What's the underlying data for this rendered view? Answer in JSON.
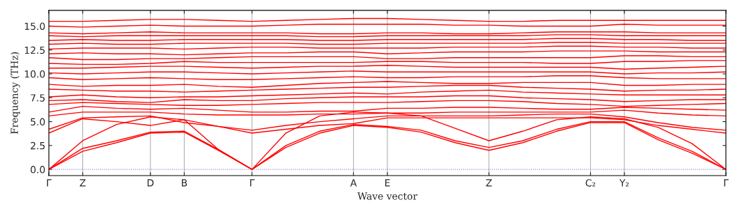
{
  "chart_data": {
    "type": "line",
    "xlabel": "Wave vector",
    "ylabel": "Frequency (THz)",
    "categories": [
      "Γ",
      "Z",
      null,
      "D",
      "B",
      null,
      "Γ",
      null,
      null,
      "A",
      "E",
      null,
      null,
      "Z",
      null,
      null,
      "C₂",
      "Y₂",
      null,
      null,
      "Γ"
    ],
    "ylim": [
      -0.65,
      16.65
    ],
    "yticks": [
      {
        "value": 0,
        "label": "0.0"
      },
      {
        "value": 2.5,
        "label": "2.5"
      },
      {
        "value": 5,
        "label": "5.0"
      },
      {
        "value": 7.5,
        "label": "7.5"
      },
      {
        "value": 10,
        "label": "10.0"
      },
      {
        "value": 12.5,
        "label": "12.5"
      },
      {
        "value": 15,
        "label": "15.0"
      }
    ],
    "grid": "x",
    "marker": "none",
    "line_style": "solid",
    "ref_lines": [
      {
        "axis": "y",
        "value": 0,
        "color": "#7f7fff",
        "line_style": "dotted"
      }
    ],
    "series": [
      {
        "color": "#ff0000",
        "values": [
          0,
          1.9,
          2.8,
          3.8,
          3.9,
          2.0,
          0,
          2.3,
          3.8,
          4.6,
          4.4,
          3.9,
          2.8,
          2.0,
          2.8,
          4.0,
          4.9,
          4.9,
          3.1,
          1.7,
          0
        ]
      },
      {
        "color": "#ff0000",
        "values": [
          0,
          2.2,
          3.0,
          3.9,
          4.0,
          2.1,
          0,
          2.5,
          4.0,
          4.7,
          4.5,
          4.1,
          3.0,
          2.3,
          3.0,
          4.2,
          5.0,
          5.0,
          3.3,
          1.9,
          0
        ]
      },
      {
        "color": "#ff0000",
        "values": [
          0,
          3.0,
          4.7,
          5.5,
          5.2,
          2.1,
          0,
          3.8,
          5.6,
          6.0,
          5.9,
          5.6,
          4.3,
          3.0,
          4.0,
          5.2,
          5.5,
          5.3,
          4.4,
          2.7,
          0
        ]
      },
      {
        "color": "#ff0000",
        "values": [
          3.8,
          5.3,
          5.0,
          4.6,
          5.2,
          4.5,
          3.8,
          4.2,
          4.6,
          4.8,
          5.4,
          5.4,
          5.4,
          5.4,
          5.4,
          5.4,
          5.4,
          5.2,
          4.6,
          4.2,
          3.8
        ]
      },
      {
        "color": "#ff0000",
        "values": [
          4.2,
          5.4,
          5.5,
          5.6,
          4.9,
          4.5,
          4.1,
          4.6,
          5.0,
          5.3,
          5.6,
          5.6,
          5.6,
          5.6,
          5.7,
          5.8,
          5.8,
          5.5,
          4.9,
          4.4,
          4.1
        ]
      },
      {
        "color": "#ff0000",
        "values": [
          5.6,
          6.0,
          6.0,
          6.0,
          5.8,
          5.7,
          5.7,
          5.7,
          5.8,
          5.8,
          5.9,
          5.9,
          6.0,
          6.0,
          6.0,
          6.0,
          6.0,
          6.2,
          5.9,
          5.7,
          5.6
        ]
      },
      {
        "color": "#ff0000",
        "values": [
          6.0,
          6.6,
          6.4,
          6.3,
          6.4,
          6.2,
          6.0,
          6.0,
          6.1,
          6.1,
          6.4,
          6.4,
          6.5,
          6.5,
          6.4,
          6.3,
          6.3,
          6.5,
          6.4,
          6.3,
          6.2
        ]
      },
      {
        "color": "#ff0000",
        "values": [
          6.8,
          7.0,
          6.9,
          6.8,
          6.7,
          6.7,
          6.8,
          6.9,
          7.0,
          7.0,
          7.0,
          7.1,
          7.2,
          7.2,
          7.1,
          6.9,
          6.8,
          6.6,
          6.7,
          6.8,
          6.9
        ]
      },
      {
        "color": "#ff0000",
        "values": [
          7.2,
          7.3,
          7.1,
          7.0,
          7.3,
          7.2,
          7.2,
          7.4,
          7.5,
          7.6,
          7.6,
          7.6,
          7.7,
          7.7,
          7.5,
          7.4,
          7.3,
          7.1,
          7.2,
          7.3,
          7.3
        ]
      },
      {
        "color": "#ff0000",
        "values": [
          7.6,
          7.8,
          7.6,
          7.5,
          7.6,
          7.6,
          7.7,
          7.8,
          7.9,
          8.0,
          7.9,
          8.1,
          8.2,
          8.3,
          8.1,
          8.0,
          7.9,
          7.8,
          7.8,
          7.8,
          7.8
        ]
      },
      {
        "color": "#ff0000",
        "values": [
          8.4,
          8.3,
          8.2,
          8.2,
          8.1,
          8.2,
          8.3,
          8.4,
          8.5,
          8.6,
          8.6,
          8.7,
          8.8,
          8.8,
          8.6,
          8.5,
          8.4,
          8.2,
          8.3,
          8.3,
          8.4
        ]
      },
      {
        "color": "#ff0000",
        "values": [
          8.9,
          8.7,
          8.8,
          8.8,
          8.9,
          8.7,
          8.6,
          8.8,
          9.0,
          9.1,
          9.2,
          9.1,
          9.0,
          9.0,
          9.1,
          9.1,
          9.1,
          8.8,
          8.8,
          8.9,
          8.9
        ]
      },
      {
        "color": "#ff0000",
        "values": [
          9.6,
          9.4,
          9.5,
          9.6,
          9.5,
          9.4,
          9.4,
          9.5,
          9.6,
          9.7,
          9.6,
          9.6,
          9.7,
          9.7,
          9.7,
          9.8,
          9.8,
          9.6,
          9.5,
          9.5,
          9.5
        ]
      },
      {
        "color": "#ff0000",
        "values": [
          10.1,
          10.0,
          10.1,
          10.2,
          10.2,
          10.1,
          10.0,
          10.1,
          10.2,
          10.3,
          10.2,
          10.2,
          10.2,
          10.2,
          10.2,
          10.2,
          10.2,
          10.0,
          10.1,
          10.1,
          10.2
        ]
      },
      {
        "color": "#ff0000",
        "values": [
          10.6,
          10.6,
          10.7,
          10.8,
          10.8,
          10.7,
          10.6,
          10.7,
          10.8,
          10.8,
          10.9,
          10.8,
          10.7,
          10.7,
          10.7,
          10.7,
          10.7,
          10.5,
          10.6,
          10.7,
          10.8
        ]
      },
      {
        "color": "#ff0000",
        "values": [
          11.1,
          11.0,
          11.0,
          11.1,
          11.3,
          11.2,
          11.2,
          11.2,
          11.2,
          11.2,
          11.3,
          11.3,
          11.2,
          11.2,
          11.2,
          11.1,
          11.1,
          11.3,
          11.3,
          11.4,
          11.4
        ]
      },
      {
        "color": "#ff0000",
        "values": [
          11.7,
          11.5,
          11.5,
          11.6,
          11.6,
          11.7,
          11.8,
          11.8,
          11.8,
          11.8,
          11.6,
          11.6,
          11.7,
          11.7,
          11.7,
          11.7,
          11.7,
          11.9,
          11.9,
          11.8,
          11.8
        ]
      },
      {
        "color": "#ff0000",
        "values": [
          12.1,
          12.2,
          12.1,
          12.1,
          12.0,
          12.1,
          12.2,
          12.2,
          12.3,
          12.3,
          12.1,
          12.2,
          12.3,
          12.3,
          12.3,
          12.4,
          12.4,
          12.4,
          12.3,
          12.3,
          12.3
        ]
      },
      {
        "color": "#ff0000",
        "values": [
          12.6,
          12.7,
          12.7,
          12.7,
          12.6,
          12.7,
          12.8,
          12.8,
          12.7,
          12.7,
          12.7,
          12.7,
          12.8,
          12.8,
          12.8,
          12.9,
          12.9,
          12.8,
          12.8,
          12.7,
          12.7
        ]
      },
      {
        "color": "#ff0000",
        "values": [
          13.1,
          13.2,
          13.1,
          13.1,
          13.2,
          13.2,
          13.2,
          13.2,
          13.1,
          13.1,
          13.2,
          13.2,
          13.2,
          13.2,
          13.2,
          13.3,
          13.3,
          13.2,
          13.2,
          13.2,
          13.2
        ]
      },
      {
        "color": "#ff0000",
        "values": [
          13.5,
          13.6,
          13.5,
          13.5,
          13.6,
          13.6,
          13.6,
          13.6,
          13.5,
          13.5,
          13.6,
          13.6,
          13.6,
          13.6,
          13.6,
          13.7,
          13.7,
          13.6,
          13.6,
          13.5,
          13.5
        ]
      },
      {
        "color": "#ff0000",
        "values": [
          14.0,
          13.9,
          14.0,
          14.0,
          14.0,
          14.0,
          14.0,
          14.0,
          13.9,
          13.9,
          14.0,
          14.0,
          14.0,
          14.0,
          14.0,
          14.1,
          14.1,
          14.0,
          14.0,
          14.0,
          14.0
        ]
      },
      {
        "color": "#ff0000",
        "values": [
          14.3,
          14.2,
          14.3,
          14.4,
          14.3,
          14.3,
          14.3,
          14.3,
          14.2,
          14.2,
          14.3,
          14.3,
          14.2,
          14.2,
          14.3,
          14.4,
          14.4,
          14.4,
          14.3,
          14.3,
          14.3
        ]
      },
      {
        "color": "#ff0000",
        "values": [
          15.0,
          14.9,
          15.0,
          15.1,
          15.0,
          15.0,
          15.0,
          15.1,
          15.2,
          15.2,
          15.2,
          15.2,
          15.1,
          15.1,
          15.0,
          15.0,
          15.0,
          15.2,
          15.1,
          15.1,
          15.1
        ]
      },
      {
        "color": "#ff0000",
        "values": [
          15.5,
          15.5,
          15.6,
          15.7,
          15.7,
          15.6,
          15.5,
          15.6,
          15.7,
          15.8,
          15.8,
          15.7,
          15.6,
          15.5,
          15.5,
          15.6,
          15.6,
          15.6,
          15.6,
          15.6,
          15.6
        ]
      }
    ]
  }
}
